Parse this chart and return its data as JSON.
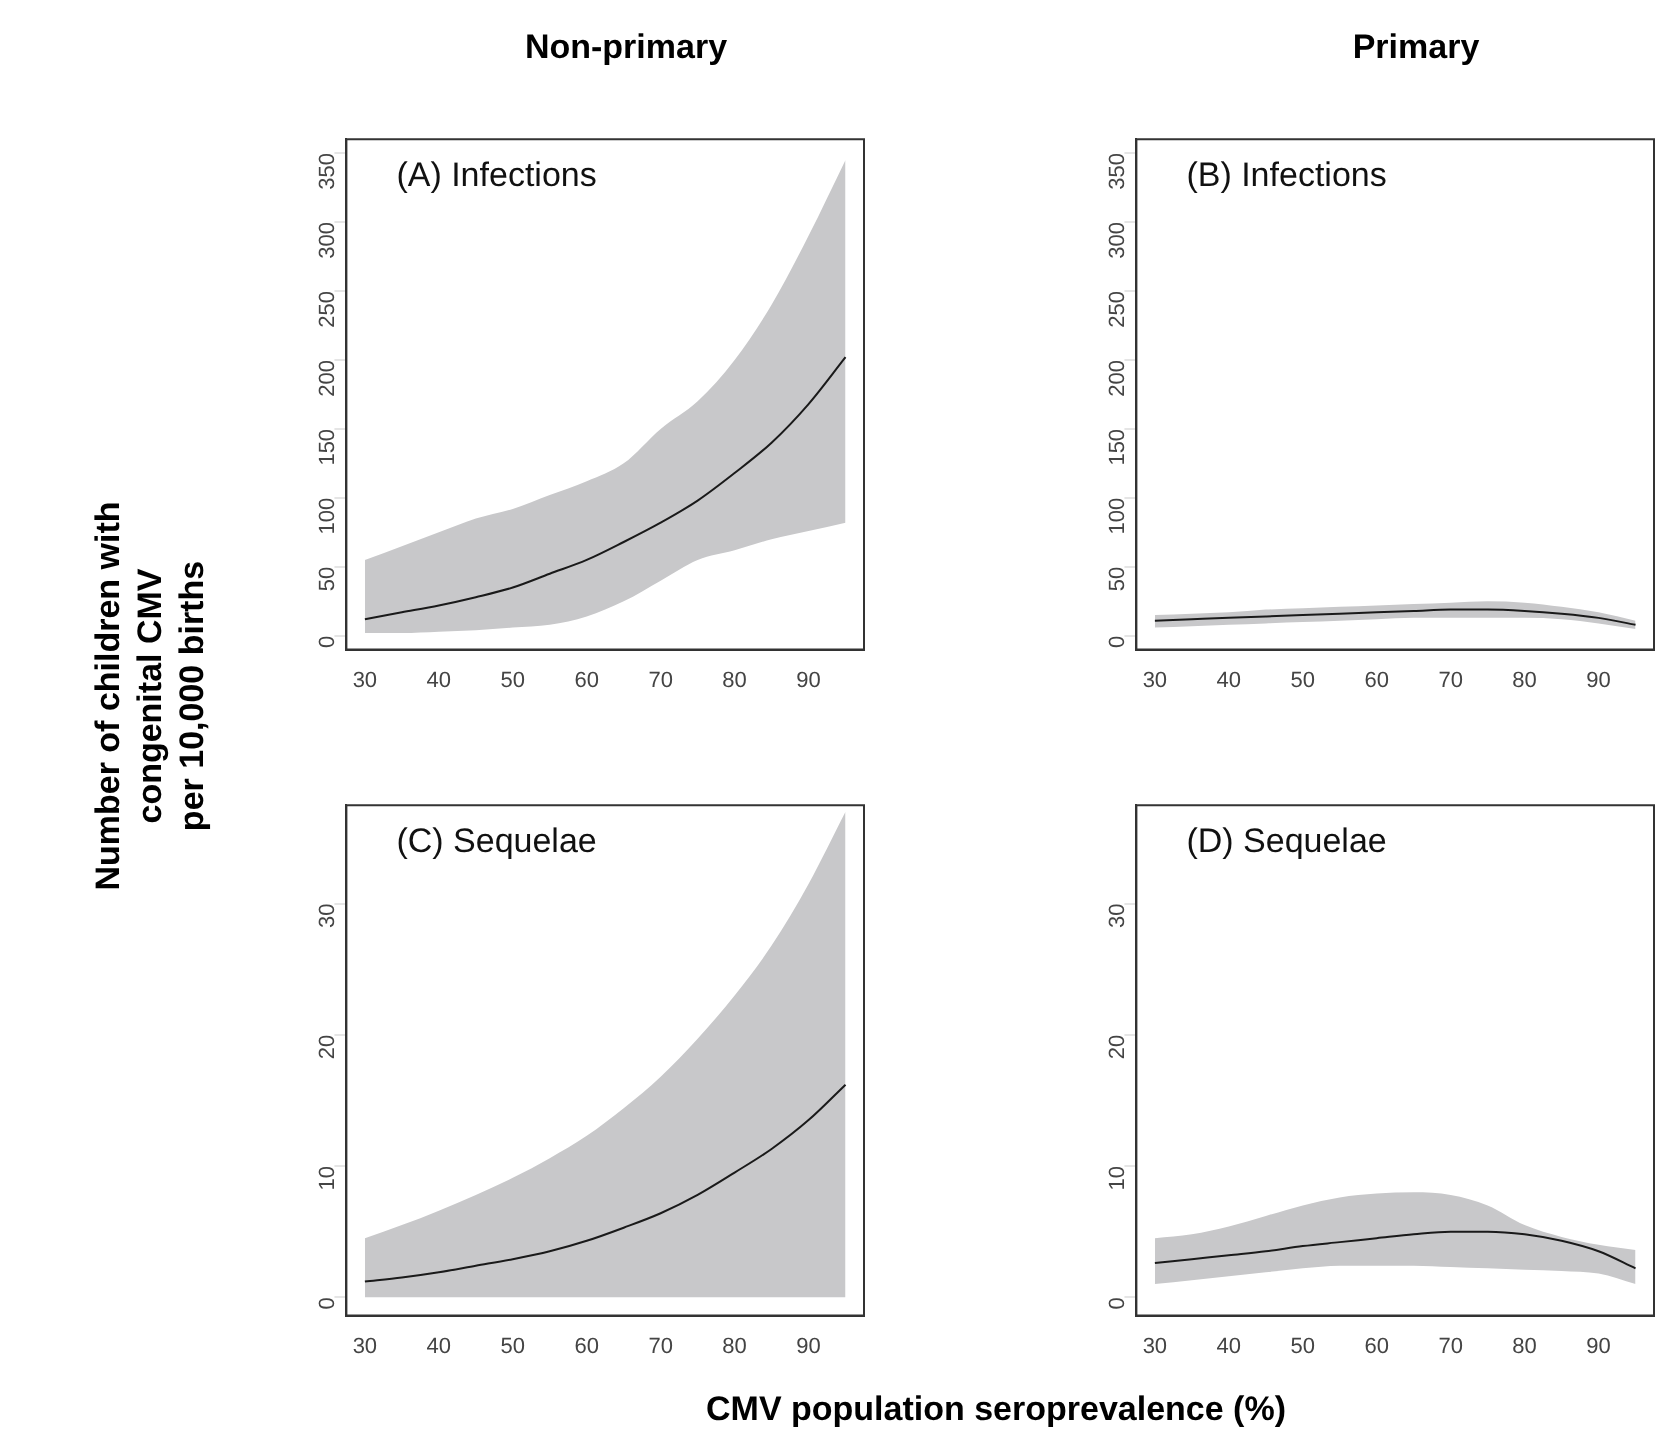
{
  "chart_data": [
    {
      "type": "line",
      "title": "Non-primary",
      "ylabel": "Number of children with\ncongenital CMV\nper 10,000 births",
      "annotations": [
        "(A) Infections"
      ],
      "x": [
        30,
        35,
        40,
        45,
        50,
        55,
        60,
        65,
        70,
        75,
        80,
        85,
        90,
        95
      ],
      "xlim": [
        27.5,
        97.5
      ],
      "xticks": [
        30,
        40,
        50,
        60,
        70,
        80,
        90
      ],
      "ylim": [
        -10,
        360
      ],
      "yticks": [
        0,
        50,
        100,
        150,
        200,
        250,
        300,
        350
      ],
      "grid": false,
      "legend": false,
      "series": [
        {
          "color": "#1a1a1a",
          "values": [
            12,
            17,
            22,
            28,
            35,
            45,
            55,
            68,
            82,
            98,
            118,
            140,
            168,
            202
          ],
          "lower": [
            2,
            2,
            3,
            4,
            6,
            8,
            14,
            25,
            40,
            55,
            62,
            70,
            76,
            82
          ],
          "upper": [
            55,
            65,
            75,
            85,
            92,
            102,
            112,
            125,
            150,
            170,
            200,
            240,
            290,
            345
          ]
        }
      ]
    },
    {
      "type": "line",
      "title": "Primary",
      "annotations": [
        "(B) Infections"
      ],
      "x": [
        30,
        35,
        40,
        45,
        50,
        55,
        60,
        65,
        70,
        75,
        80,
        85,
        90,
        95
      ],
      "xlim": [
        27.5,
        97.5
      ],
      "xticks": [
        30,
        40,
        50,
        60,
        70,
        80,
        90
      ],
      "ylim": [
        -10,
        360
      ],
      "yticks": [
        0,
        50,
        100,
        150,
        200,
        250,
        300,
        350
      ],
      "grid": false,
      "legend": false,
      "series": [
        {
          "color": "#1a1a1a",
          "values": [
            11,
            12,
            13,
            14,
            15,
            16,
            17,
            18,
            19,
            19,
            18,
            16,
            13,
            8
          ],
          "lower": [
            6,
            7,
            8,
            9,
            10,
            11,
            12,
            13,
            13,
            13,
            13,
            12,
            9,
            5
          ],
          "upper": [
            15,
            16,
            17,
            19,
            20,
            21,
            22,
            23,
            24,
            25,
            24,
            21,
            17,
            11
          ]
        }
      ]
    },
    {
      "type": "line",
      "xlabel": "CMV population seroprevalence (%)",
      "annotations": [
        "(C) Sequelae"
      ],
      "x": [
        30,
        35,
        40,
        45,
        50,
        55,
        60,
        65,
        70,
        75,
        80,
        85,
        90,
        95
      ],
      "xlim": [
        27.5,
        97.5
      ],
      "xticks": [
        30,
        40,
        50,
        60,
        70,
        80,
        90
      ],
      "ylim": [
        -1.4,
        37.5
      ],
      "yticks": [
        0,
        10,
        20,
        30
      ],
      "grid": false,
      "legend": false,
      "series": [
        {
          "color": "#1a1a1a",
          "values": [
            1.2,
            1.5,
            1.9,
            2.4,
            2.9,
            3.5,
            4.3,
            5.3,
            6.4,
            7.8,
            9.5,
            11.3,
            13.5,
            16.2
          ],
          "lower": [
            0,
            0,
            0,
            0,
            0,
            0,
            0,
            0,
            0,
            0,
            0,
            0,
            0,
            0
          ],
          "upper": [
            4.5,
            5.5,
            6.6,
            7.8,
            9.1,
            10.6,
            12.3,
            14.4,
            16.8,
            19.7,
            23,
            26.8,
            31.5,
            37
          ]
        }
      ]
    },
    {
      "type": "line",
      "annotations": [
        "(D) Sequelae"
      ],
      "x": [
        30,
        35,
        40,
        45,
        50,
        55,
        60,
        65,
        70,
        75,
        80,
        85,
        90,
        95
      ],
      "xlim": [
        27.5,
        97.5
      ],
      "xticks": [
        30,
        40,
        50,
        60,
        70,
        80,
        90
      ],
      "ylim": [
        -1.4,
        37.5
      ],
      "yticks": [
        0,
        10,
        20,
        30
      ],
      "grid": false,
      "legend": false,
      "series": [
        {
          "color": "#1a1a1a",
          "values": [
            2.6,
            2.9,
            3.2,
            3.5,
            3.9,
            4.2,
            4.5,
            4.8,
            5.0,
            5.0,
            4.8,
            4.3,
            3.5,
            2.2
          ],
          "lower": [
            1.0,
            1.3,
            1.6,
            1.9,
            2.2,
            2.4,
            2.4,
            2.4,
            2.3,
            2.2,
            2.1,
            2.0,
            1.8,
            1.0
          ],
          "upper": [
            4.5,
            4.8,
            5.4,
            6.2,
            7.0,
            7.6,
            7.9,
            8.0,
            7.8,
            7.0,
            5.5,
            4.6,
            4.0,
            3.6
          ]
        }
      ]
    }
  ]
}
